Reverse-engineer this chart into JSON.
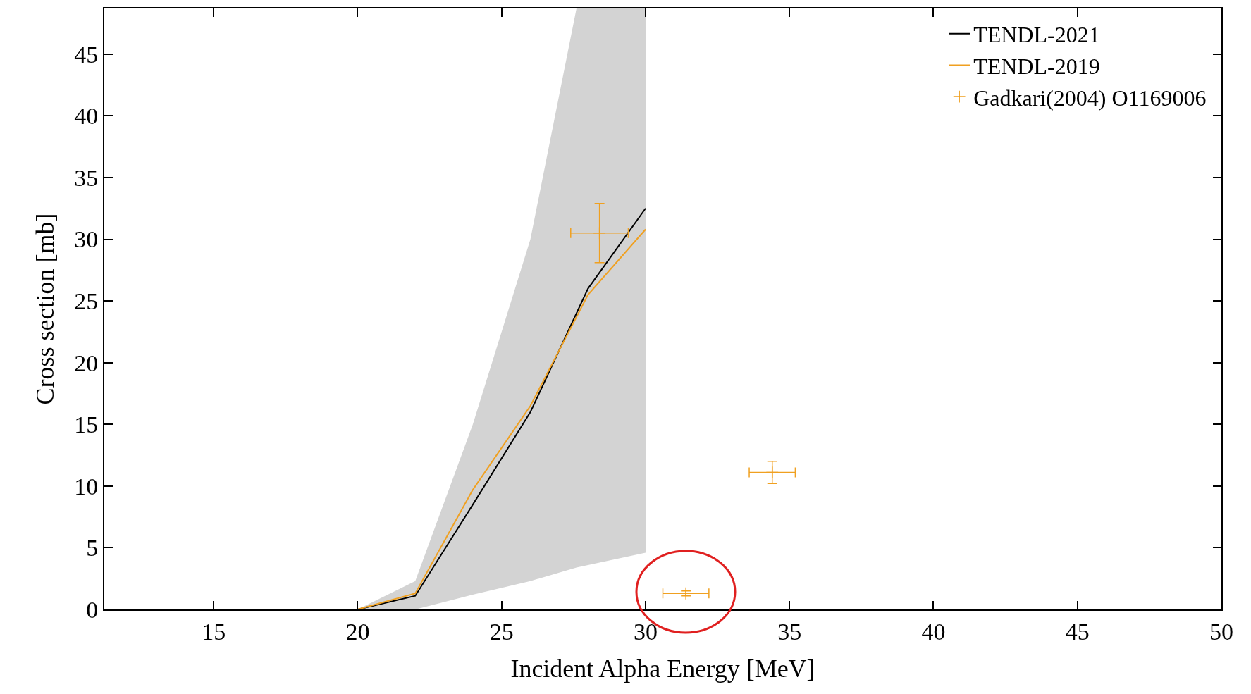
{
  "chart_data": {
    "type": "line",
    "xlabel": "Incident Alpha Energy [MeV]",
    "ylabel": "Cross section [mb]",
    "xlim": [
      11.2,
      50
    ],
    "xticks": [
      15,
      20,
      25,
      30,
      35,
      40,
      45,
      50
    ],
    "ylim": [
      0,
      48.7
    ],
    "yticks": [
      0,
      5,
      10,
      15,
      20,
      25,
      30,
      35,
      40,
      45
    ],
    "grid": false,
    "legend": "top right",
    "series": [
      {
        "type": "area",
        "color": "#d3d3d3",
        "x": [
          20,
          22,
          24,
          26,
          27.6,
          30
        ],
        "values": [
          null,
          null,
          null,
          null,
          null,
          null
        ],
        "lower": [
          0,
          0,
          1.2,
          2.3,
          3.4,
          4.6
        ],
        "upper": [
          0,
          2.3,
          15,
          30,
          48.7,
          48.7
        ]
      },
      {
        "name": "TENDL-2021",
        "color": "#000000",
        "x": [
          20,
          22,
          24,
          26,
          28,
          30
        ],
        "values": [
          0,
          1.1,
          8.5,
          16,
          26,
          32.5
        ]
      },
      {
        "name": "TENDL-2019",
        "color": "#f0a020",
        "x": [
          20,
          22,
          24,
          26,
          28,
          30
        ],
        "values": [
          0,
          1.3,
          9.7,
          16.5,
          25.5,
          30.8
        ]
      },
      {
        "type": "scatter",
        "name": "Gadkari(2004) O1169006",
        "color": "#f0a020",
        "marker": "cross",
        "x": [
          28.4,
          34.4,
          31.4
        ],
        "values": [
          30.5,
          11.1,
          1.3
        ],
        "errors": [
          2.4,
          0.9,
          0.2
        ],
        "xerrors": [
          1.0,
          0.8,
          0.8
        ]
      }
    ]
  }
}
